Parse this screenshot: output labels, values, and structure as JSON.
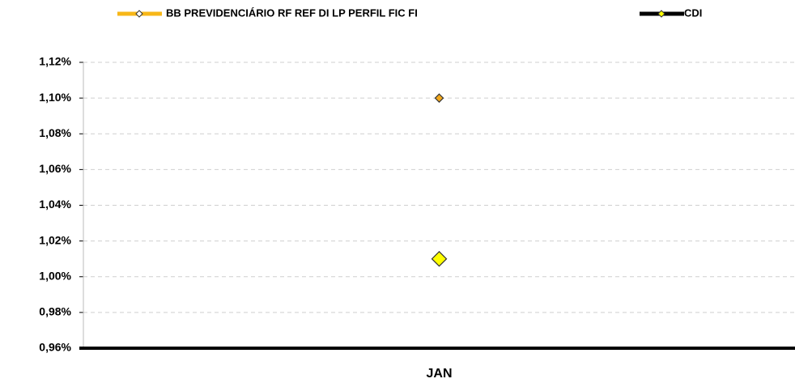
{
  "chart_data": {
    "type": "line",
    "categories": [
      "JAN"
    ],
    "series": [
      {
        "name": "BB PREVIDENCIÁRIO RF REF DI LP PERFIL FIC FI",
        "color": "#f7b718",
        "marker_color": "#f2a81d",
        "values": [
          1.1
        ]
      },
      {
        "name": "CDI",
        "color": "#000000",
        "marker_color": "#ffff00",
        "values": [
          1.01
        ]
      }
    ],
    "ylim": [
      0.96,
      1.12
    ],
    "yticks": [
      {
        "value": 0.96,
        "label": "0,96%"
      },
      {
        "value": 0.98,
        "label": "0,98%"
      },
      {
        "value": 1.0,
        "label": "1,00%"
      },
      {
        "value": 1.02,
        "label": "1,02%"
      },
      {
        "value": 1.04,
        "label": "1,04%"
      },
      {
        "value": 1.06,
        "label": "1,06%"
      },
      {
        "value": 1.08,
        "label": "1,08%"
      },
      {
        "value": 1.1,
        "label": "1,10%"
      },
      {
        "value": 1.12,
        "label": "1,12%"
      }
    ],
    "grid": true,
    "legend": "top"
  }
}
